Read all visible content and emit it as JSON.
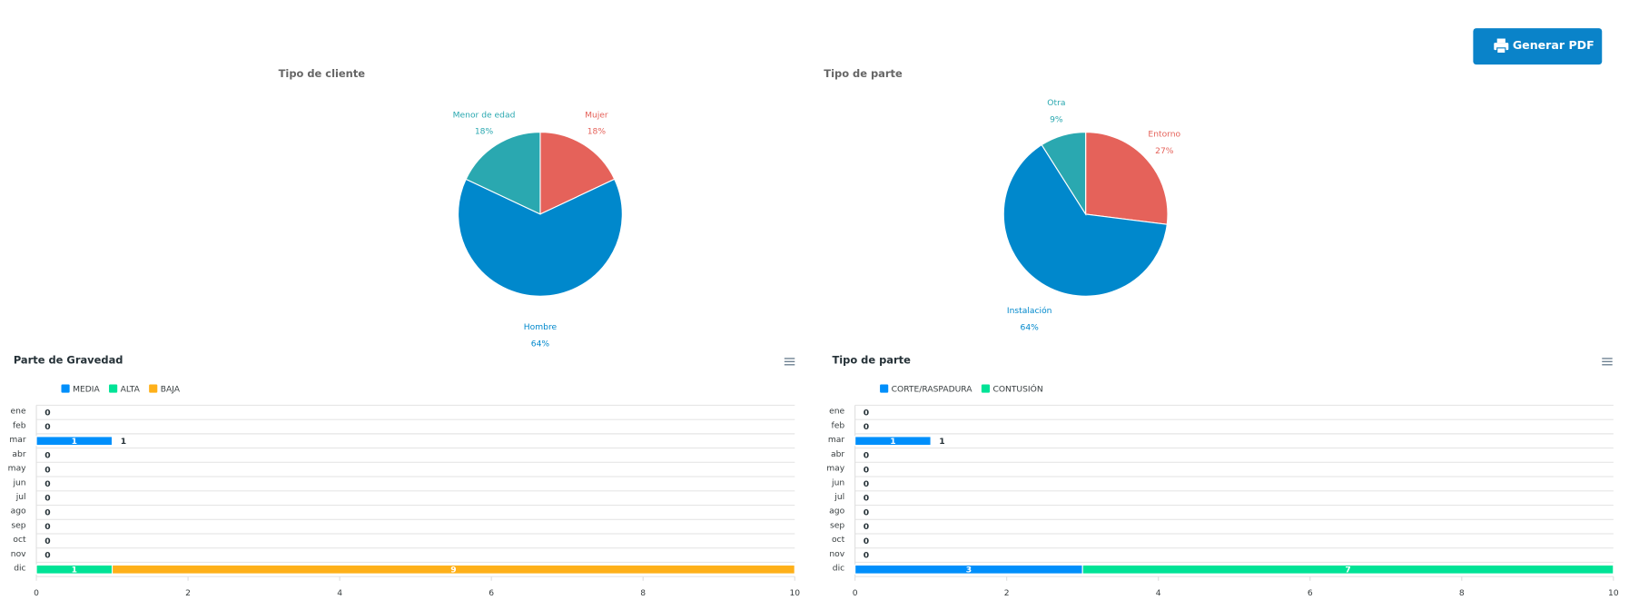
{
  "button": "Generar PDF",
  "chart_data": [
    {
      "type": "pie",
      "title": "Tipo de cliente",
      "categories": [
        "Mujer",
        "Hombre",
        "Menor de edad"
      ],
      "values": [
        18,
        64,
        18
      ],
      "value_labels": [
        "18%",
        "64%",
        "18%"
      ],
      "colors": [
        "#e5625a",
        "#0088cc",
        "#2aa8b0"
      ]
    },
    {
      "type": "pie",
      "title": "Tipo de parte",
      "categories": [
        "Entorno",
        "Instalación",
        "Otra"
      ],
      "values": [
        27,
        64,
        9
      ],
      "value_labels": [
        "27%",
        "64%",
        "9%"
      ],
      "colors": [
        "#e5625a",
        "#0088cc",
        "#2aa8b0"
      ]
    },
    {
      "type": "bar",
      "title": "Parte de Gravedad",
      "categories": [
        "ene",
        "feb",
        "mar",
        "abr",
        "may",
        "jun",
        "jul",
        "ago",
        "sep",
        "oct",
        "nov",
        "dic"
      ],
      "series": [
        {
          "name": "MEDIA",
          "color": "#008ffb",
          "values": [
            0,
            0,
            1,
            0,
            0,
            0,
            0,
            0,
            0,
            0,
            0,
            0
          ]
        },
        {
          "name": "ALTA",
          "color": "#00e396",
          "values": [
            0,
            0,
            0,
            0,
            0,
            0,
            0,
            0,
            0,
            0,
            0,
            1
          ]
        },
        {
          "name": "BAJA",
          "color": "#feb019",
          "values": [
            0,
            0,
            0,
            0,
            0,
            0,
            0,
            0,
            0,
            0,
            0,
            9
          ]
        }
      ],
      "totals": [
        0,
        0,
        1,
        0,
        0,
        0,
        0,
        0,
        0,
        0,
        0,
        null
      ],
      "xlim": [
        0,
        10
      ],
      "xticks": [
        0,
        2,
        4,
        6,
        8,
        10
      ]
    },
    {
      "type": "bar",
      "title": "Tipo de parte",
      "categories": [
        "ene",
        "feb",
        "mar",
        "abr",
        "may",
        "jun",
        "jul",
        "ago",
        "sep",
        "oct",
        "nov",
        "dic"
      ],
      "series": [
        {
          "name": "CORTE/RASPADURA",
          "color": "#008ffb",
          "values": [
            0,
            0,
            1,
            0,
            0,
            0,
            0,
            0,
            0,
            0,
            0,
            3
          ]
        },
        {
          "name": "CONTUSIÓN",
          "color": "#00e396",
          "values": [
            0,
            0,
            0,
            0,
            0,
            0,
            0,
            0,
            0,
            0,
            0,
            7
          ]
        }
      ],
      "totals": [
        0,
        0,
        1,
        0,
        0,
        0,
        0,
        0,
        0,
        0,
        0,
        null
      ],
      "xlim": [
        0,
        10
      ],
      "xticks": [
        0,
        2,
        4,
        6,
        8,
        10
      ]
    }
  ]
}
